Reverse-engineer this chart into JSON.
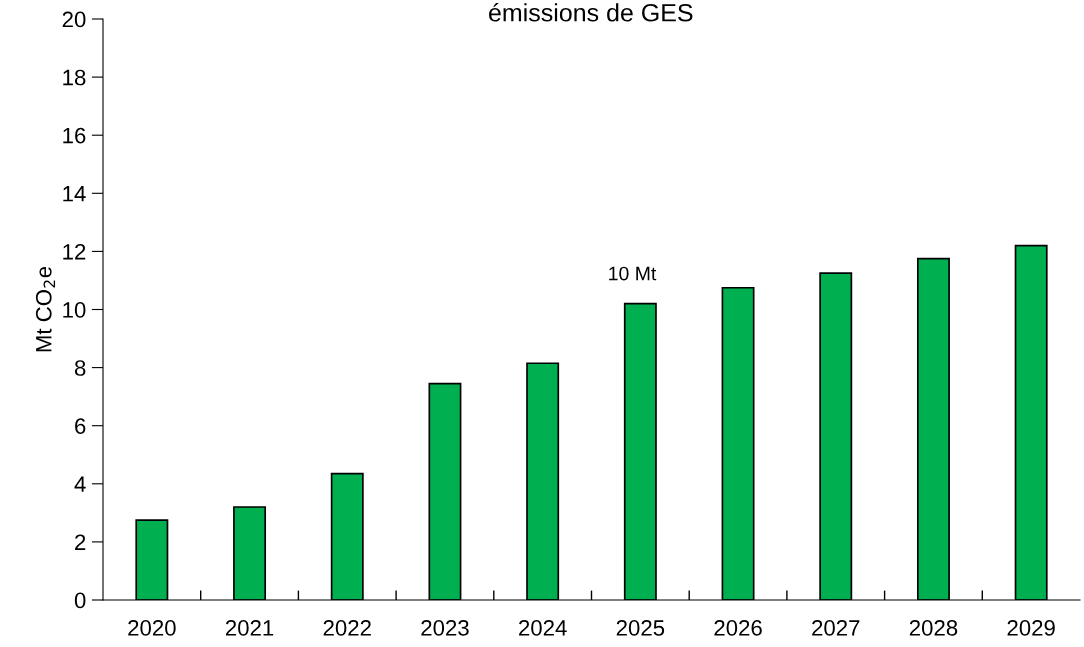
{
  "chart_data": {
    "type": "bar",
    "title": "émissions de GES",
    "ylabel": "Mt CO$_{2}$e",
    "categories": [
      "2020",
      "2021",
      "2022",
      "2023",
      "2024",
      "2025",
      "2026",
      "2027",
      "2028",
      "2029"
    ],
    "values": [
      2.75,
      3.2,
      4.35,
      7.45,
      8.15,
      10.2,
      10.75,
      11.25,
      11.75,
      12.2
    ],
    "color": "#00b050",
    "ylim": [
      0,
      20
    ],
    "yticks": [
      0,
      2,
      4,
      6,
      8,
      10,
      12,
      14,
      16,
      18,
      20
    ],
    "annotations": [
      {
        "text": "10 Mt",
        "x": "2025",
        "y": 10.2
      }
    ],
    "grid": false,
    "legend": false
  }
}
